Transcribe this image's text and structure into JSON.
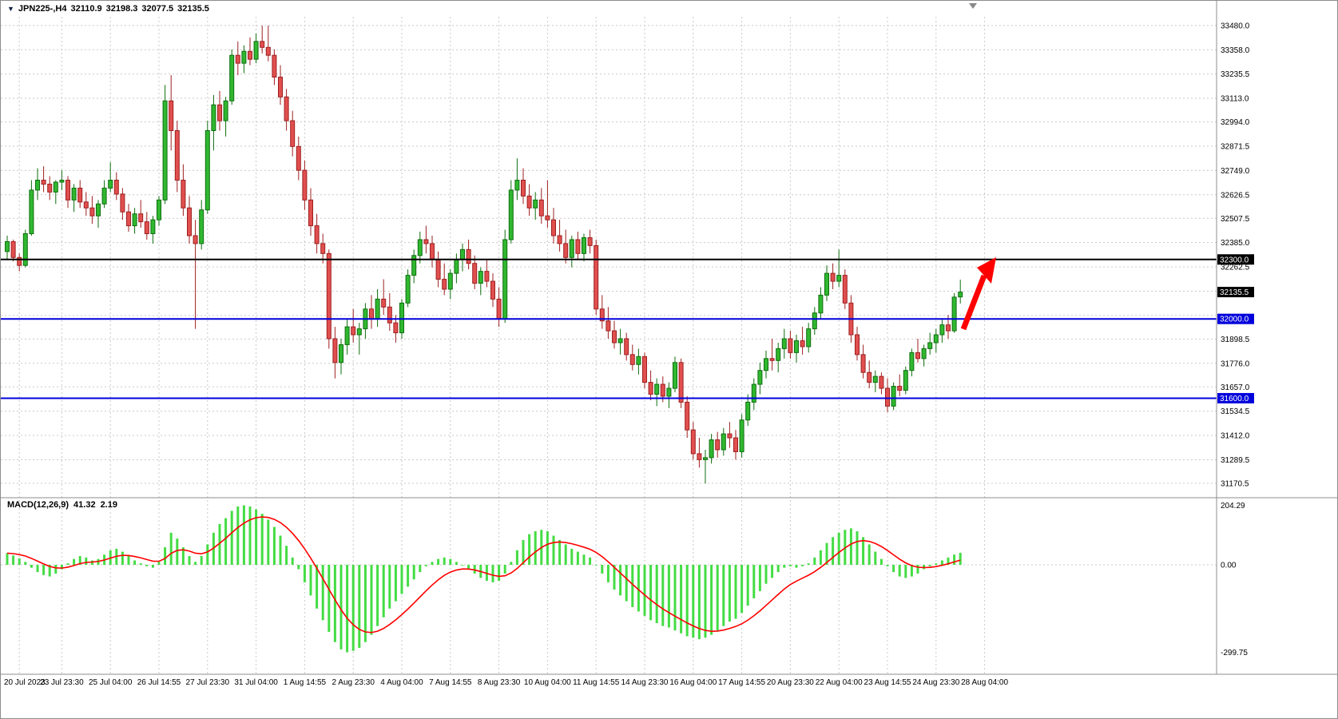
{
  "header": {
    "dropdown_icon": "▼",
    "symbol_period": "JPN225-,H4",
    "open": "32110.9",
    "high": "32198.3",
    "low": "32077.5",
    "close": "32135.5"
  },
  "macd_panel": {
    "label": "MACD(12,26,9)",
    "macd_value": "41.32",
    "signal_value": "2.19",
    "axis": {
      "top_label": "204.29",
      "zero_label": "0.00",
      "bottom_label": "-299.75"
    }
  },
  "price_axis": {
    "grid_labels": [
      "33480.0",
      "33358.0",
      "33235.5",
      "33113.0",
      "32994.0",
      "32871.5",
      "32749.0",
      "32626.5",
      "32507.5",
      "32385.0",
      "32262.5",
      "31898.5",
      "31776.0",
      "31657.0",
      "31534.5",
      "31412.0",
      "31289.5",
      "31170.5"
    ],
    "hidden_grid_values": [
      32140.0,
      32017.5
    ],
    "markers": [
      {
        "value": 32300.0,
        "label": "32300.0",
        "bg": "#000000",
        "line": {
          "color": "#000000",
          "width": 2
        }
      },
      {
        "value": 32135.5,
        "label": "32135.5",
        "bg": "#000000",
        "line": null
      },
      {
        "value": 32000.0,
        "label": "32000.0",
        "bg": "#0000dc",
        "line": {
          "color": "#0000dc",
          "width": 2
        }
      },
      {
        "value": 31600.0,
        "label": "31600.0",
        "bg": "#0000dc",
        "line": {
          "color": "#0000dc",
          "width": 2
        }
      }
    ]
  },
  "time_axis": {
    "labels": [
      {
        "text": "20 Jul 2023",
        "candle_index": 2
      },
      {
        "text": "23 Jul 23:30",
        "candle_index": 9
      },
      {
        "text": "25 Jul 04:00",
        "candle_index": 17
      },
      {
        "text": "26 Jul 14:55",
        "candle_index": 25
      },
      {
        "text": "27 Jul 23:30",
        "candle_index": 33
      },
      {
        "text": "31 Jul 04:00",
        "candle_index": 41
      },
      {
        "text": "1 Aug 14:55",
        "candle_index": 49
      },
      {
        "text": "2 Aug 23:30",
        "candle_index": 57
      },
      {
        "text": "4 Aug 04:00",
        "candle_index": 65
      },
      {
        "text": "7 Aug 14:55",
        "candle_index": 73
      },
      {
        "text": "8 Aug 23:30",
        "candle_index": 81
      },
      {
        "text": "10 Aug 04:00",
        "candle_index": 89
      },
      {
        "text": "11 Aug 14:55",
        "candle_index": 97
      },
      {
        "text": "14 Aug 23:30",
        "candle_index": 105
      },
      {
        "text": "16 Aug 04:00",
        "candle_index": 113
      },
      {
        "text": "17 Aug 14:55",
        "candle_index": 121
      },
      {
        "text": "20 Aug 23:30",
        "candle_index": 129
      },
      {
        "text": "22 Aug 04:00",
        "candle_index": 137
      },
      {
        "text": "23 Aug 14:55",
        "candle_index": 145
      },
      {
        "text": "24 Aug 23:30",
        "candle_index": 153
      },
      {
        "text": "28 Aug 04:00",
        "candle_index": 161
      }
    ]
  },
  "colors": {
    "background": "#ffffff",
    "grid": "#c9c9c9",
    "divider": "#8c8c8c",
    "axis_text": "#000000",
    "candle_up_fill": "#30b830",
    "candle_up_border": "#0e6e0e",
    "candle_down_fill": "#e14f4f",
    "candle_down_border": "#9e1f1f",
    "macd_histogram": "#44dc44",
    "macd_signal": "#ff0000",
    "arrow": "#ff0000",
    "marker_text": "#ffffff",
    "shift_marker": "#888888"
  },
  "chart_data": {
    "type": "candlestick",
    "symbol": "JPN225-",
    "timeframe": "H4",
    "title": "JPN225-,H4",
    "ylim": [
      31170.5,
      33480.0
    ],
    "horizontal_lines": [
      32300.0,
      32000.0,
      31600.0
    ],
    "candles_ohlc": [
      [
        32340,
        32420,
        32300,
        32390
      ],
      [
        32390,
        32400,
        32290,
        32310
      ],
      [
        32310,
        32330,
        32240,
        32270
      ],
      [
        32270,
        32450,
        32260,
        32430
      ],
      [
        32430,
        32700,
        32420,
        32650
      ],
      [
        32650,
        32760,
        32600,
        32700
      ],
      [
        32700,
        32770,
        32640,
        32680
      ],
      [
        32680,
        32720,
        32600,
        32640
      ],
      [
        32640,
        32700,
        32580,
        32690
      ],
      [
        32690,
        32750,
        32650,
        32700
      ],
      [
        32700,
        32720,
        32560,
        32600
      ],
      [
        32600,
        32680,
        32540,
        32660
      ],
      [
        32660,
        32700,
        32560,
        32590
      ],
      [
        32590,
        32640,
        32520,
        32560
      ],
      [
        32560,
        32620,
        32480,
        32520
      ],
      [
        32520,
        32600,
        32460,
        32580
      ],
      [
        32580,
        32700,
        32560,
        32660
      ],
      [
        32660,
        32790,
        32640,
        32700
      ],
      [
        32700,
        32740,
        32600,
        32630
      ],
      [
        32630,
        32660,
        32500,
        32540
      ],
      [
        32540,
        32580,
        32440,
        32470
      ],
      [
        32470,
        32560,
        32430,
        32530
      ],
      [
        32530,
        32600,
        32460,
        32490
      ],
      [
        32490,
        32540,
        32400,
        32430
      ],
      [
        32430,
        32520,
        32380,
        32500
      ],
      [
        32500,
        32620,
        32470,
        32600
      ],
      [
        32600,
        33180,
        32580,
        33100
      ],
      [
        33100,
        33230,
        32850,
        32950
      ],
      [
        32950,
        33000,
        32640,
        32700
      ],
      [
        32700,
        32780,
        32520,
        32560
      ],
      [
        32560,
        32620,
        32380,
        32420
      ],
      [
        32420,
        32500,
        31950,
        32380
      ],
      [
        32380,
        32600,
        32350,
        32550
      ],
      [
        32550,
        33000,
        32530,
        32950
      ],
      [
        32950,
        33130,
        32850,
        33080
      ],
      [
        33080,
        33150,
        32950,
        33000
      ],
      [
        33000,
        33120,
        32920,
        33100
      ],
      [
        33100,
        33360,
        33080,
        33330
      ],
      [
        33330,
        33400,
        33230,
        33290
      ],
      [
        33290,
        33380,
        33240,
        33350
      ],
      [
        33350,
        33420,
        33280,
        33310
      ],
      [
        33310,
        33440,
        33290,
        33400
      ],
      [
        33400,
        33480,
        33340,
        33370
      ],
      [
        33370,
        33480,
        33300,
        33330
      ],
      [
        33330,
        33360,
        33180,
        33220
      ],
      [
        33220,
        33280,
        33080,
        33120
      ],
      [
        33120,
        33160,
        32950,
        33000
      ],
      [
        33000,
        33050,
        32820,
        32870
      ],
      [
        32870,
        32920,
        32700,
        32750
      ],
      [
        32750,
        32800,
        32550,
        32600
      ],
      [
        32600,
        32660,
        32420,
        32470
      ],
      [
        32470,
        32530,
        32330,
        32380
      ],
      [
        32380,
        32430,
        32280,
        32330
      ],
      [
        32330,
        32350,
        31850,
        31900
      ],
      [
        31900,
        31960,
        31700,
        31780
      ],
      [
        31780,
        31900,
        31720,
        31870
      ],
      [
        31870,
        32000,
        31820,
        31960
      ],
      [
        31960,
        32050,
        31880,
        31920
      ],
      [
        31920,
        31980,
        31820,
        31950
      ],
      [
        31950,
        32080,
        31900,
        32050
      ],
      [
        32050,
        32120,
        31950,
        32000
      ],
      [
        32000,
        32150,
        31960,
        32100
      ],
      [
        32100,
        32200,
        32020,
        32060
      ],
      [
        32060,
        32130,
        31940,
        31980
      ],
      [
        31980,
        32020,
        31880,
        31930
      ],
      [
        31930,
        32100,
        31900,
        32080
      ],
      [
        32080,
        32250,
        32060,
        32220
      ],
      [
        32220,
        32350,
        32180,
        32320
      ],
      [
        32320,
        32440,
        32280,
        32400
      ],
      [
        32400,
        32470,
        32330,
        32380
      ],
      [
        32380,
        32420,
        32260,
        32300
      ],
      [
        32300,
        32340,
        32160,
        32200
      ],
      [
        32200,
        32280,
        32120,
        32150
      ],
      [
        32150,
        32250,
        32100,
        32230
      ],
      [
        32230,
        32330,
        32180,
        32300
      ],
      [
        32300,
        32380,
        32240,
        32350
      ],
      [
        32350,
        32400,
        32250,
        32280
      ],
      [
        32280,
        32320,
        32150,
        32180
      ],
      [
        32180,
        32260,
        32120,
        32240
      ],
      [
        32240,
        32300,
        32160,
        32190
      ],
      [
        32190,
        32230,
        32060,
        32100
      ],
      [
        32100,
        32160,
        31960,
        32000
      ],
      [
        32000,
        32450,
        31980,
        32400
      ],
      [
        32400,
        32700,
        32380,
        32650
      ],
      [
        32650,
        32810,
        32600,
        32700
      ],
      [
        32700,
        32760,
        32580,
        32620
      ],
      [
        32620,
        32680,
        32520,
        32560
      ],
      [
        32560,
        32640,
        32500,
        32600
      ],
      [
        32600,
        32660,
        32480,
        32520
      ],
      [
        32520,
        32700,
        32460,
        32500
      ],
      [
        32500,
        32560,
        32380,
        32420
      ],
      [
        32420,
        32500,
        32340,
        32380
      ],
      [
        32380,
        32450,
        32280,
        32310
      ],
      [
        32310,
        32420,
        32260,
        32400
      ],
      [
        32400,
        32440,
        32300,
        32330
      ],
      [
        32330,
        32430,
        32290,
        32410
      ],
      [
        32410,
        32450,
        32330,
        32370
      ],
      [
        32370,
        32400,
        32020,
        32050
      ],
      [
        32050,
        32120,
        31950,
        31990
      ],
      [
        31990,
        32060,
        31900,
        31940
      ],
      [
        31940,
        31990,
        31850,
        31880
      ],
      [
        31880,
        31950,
        31820,
        31900
      ],
      [
        31900,
        31930,
        31790,
        31820
      ],
      [
        31820,
        31870,
        31740,
        31770
      ],
      [
        31770,
        31850,
        31720,
        31810
      ],
      [
        31810,
        31830,
        31650,
        31680
      ],
      [
        31680,
        31740,
        31590,
        31620
      ],
      [
        31620,
        31700,
        31560,
        31670
      ],
      [
        31670,
        31710,
        31580,
        31610
      ],
      [
        31610,
        31680,
        31550,
        31650
      ],
      [
        31650,
        31810,
        31630,
        31780
      ],
      [
        31780,
        31800,
        31550,
        31580
      ],
      [
        31580,
        31610,
        31400,
        31440
      ],
      [
        31440,
        31480,
        31290,
        31320
      ],
      [
        31320,
        31400,
        31250,
        31290
      ],
      [
        31290,
        31340,
        31170,
        31300
      ],
      [
        31300,
        31420,
        31270,
        31390
      ],
      [
        31390,
        31430,
        31300,
        31340
      ],
      [
        31340,
        31450,
        31310,
        31420
      ],
      [
        31420,
        31480,
        31350,
        31400
      ],
      [
        31400,
        31440,
        31290,
        31330
      ],
      [
        31330,
        31520,
        31300,
        31490
      ],
      [
        31490,
        31620,
        31460,
        31580
      ],
      [
        31580,
        31700,
        31540,
        31670
      ],
      [
        31670,
        31780,
        31620,
        31740
      ],
      [
        31740,
        31840,
        31700,
        31800
      ],
      [
        31800,
        31900,
        31740,
        31790
      ],
      [
        31790,
        31880,
        31730,
        31850
      ],
      [
        31850,
        31950,
        31800,
        31900
      ],
      [
        31900,
        31940,
        31800,
        31830
      ],
      [
        31830,
        31920,
        31780,
        31890
      ],
      [
        31890,
        31960,
        31820,
        31860
      ],
      [
        31860,
        31980,
        31830,
        31950
      ],
      [
        31950,
        32060,
        31920,
        32030
      ],
      [
        32030,
        32160,
        32000,
        32120
      ],
      [
        32120,
        32270,
        32090,
        32230
      ],
      [
        32230,
        32280,
        32150,
        32190
      ],
      [
        32190,
        32350,
        32160,
        32220
      ],
      [
        32220,
        32250,
        32050,
        32080
      ],
      [
        32080,
        32120,
        31880,
        31920
      ],
      [
        31920,
        31960,
        31790,
        31820
      ],
      [
        31820,
        31870,
        31700,
        31730
      ],
      [
        31730,
        31790,
        31650,
        31680
      ],
      [
        31680,
        31740,
        31630,
        31710
      ],
      [
        31710,
        31730,
        31620,
        31650
      ],
      [
        31650,
        31700,
        31530,
        31560
      ],
      [
        31560,
        31680,
        31540,
        31660
      ],
      [
        31660,
        31720,
        31610,
        31640
      ],
      [
        31640,
        31760,
        31620,
        31740
      ],
      [
        31740,
        31850,
        31710,
        31830
      ],
      [
        31830,
        31900,
        31780,
        31800
      ],
      [
        31800,
        31870,
        31760,
        31850
      ],
      [
        31850,
        31930,
        31820,
        31880
      ],
      [
        31880,
        31950,
        31830,
        31920
      ],
      [
        31920,
        32000,
        31880,
        31970
      ],
      [
        31970,
        32020,
        31900,
        31940
      ],
      [
        31940,
        32130,
        31930,
        32110
      ],
      [
        32110.9,
        32198.3,
        32077.5,
        32135.5
      ]
    ],
    "indicator": {
      "type": "macd-histogram",
      "name": "MACD(12,26,9)",
      "signal_period": 9,
      "ylim": [
        -299.75,
        204.29
      ],
      "last_macd": 41.32,
      "last_signal": 2.19,
      "values": [
        40,
        32,
        22,
        10,
        -10,
        -25,
        -35,
        -40,
        -30,
        -15,
        5,
        20,
        30,
        25,
        15,
        20,
        35,
        50,
        55,
        45,
        30,
        15,
        5,
        -5,
        -10,
        10,
        60,
        110,
        90,
        60,
        30,
        10,
        30,
        70,
        110,
        140,
        160,
        185,
        200,
        204,
        200,
        190,
        175,
        155,
        130,
        100,
        65,
        25,
        -15,
        -60,
        -105,
        -150,
        -190,
        -230,
        -265,
        -290,
        -300,
        -295,
        -285,
        -265,
        -240,
        -210,
        -180,
        -150,
        -125,
        -100,
        -75,
        -50,
        -25,
        -5,
        10,
        20,
        25,
        20,
        10,
        0,
        -15,
        -30,
        -45,
        -55,
        -60,
        -55,
        -30,
        10,
        50,
        85,
        105,
        115,
        120,
        115,
        100,
        85,
        70,
        55,
        45,
        35,
        25,
        0,
        -30,
        -60,
        -85,
        -105,
        -125,
        -145,
        -160,
        -175,
        -190,
        -200,
        -210,
        -215,
        -225,
        -235,
        -245,
        -250,
        -255,
        -250,
        -240,
        -225,
        -210,
        -195,
        -185,
        -165,
        -140,
        -115,
        -90,
        -65,
        -45,
        -25,
        -10,
        -5,
        -10,
        -5,
        5,
        25,
        50,
        75,
        95,
        110,
        120,
        125,
        115,
        95,
        70,
        45,
        20,
        -5,
        -25,
        -40,
        -45,
        -40,
        -30,
        -15,
        -5,
        5,
        15,
        25,
        35,
        41.32
      ]
    }
  }
}
